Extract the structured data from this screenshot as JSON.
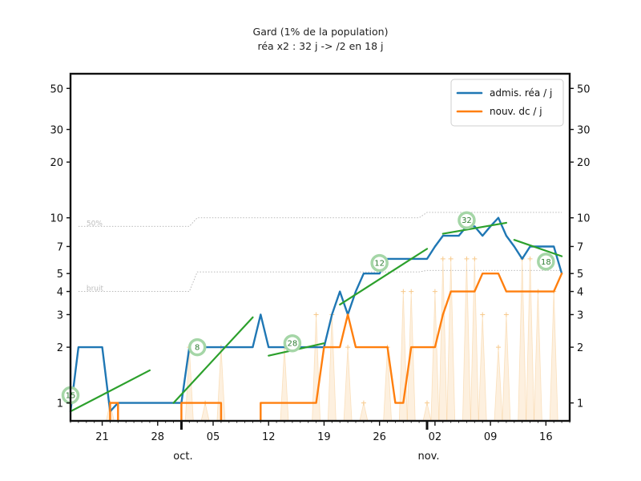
{
  "chart_data": {
    "type": "line",
    "title": "Gard (1% de la population)",
    "subtitle": "réa x2 : 32 j -> /2 en 18 j",
    "y_scale": "log",
    "ylim": [
      0.8,
      60
    ],
    "y_ticks": [
      1,
      2,
      3,
      4,
      5,
      7,
      10,
      20,
      30,
      50
    ],
    "x_range": [
      "2020-09-17",
      "2020-11-19"
    ],
    "x_tick_labels": [
      {
        "date": "2020-09-21",
        "label": "21"
      },
      {
        "date": "2020-09-28",
        "label": "28"
      },
      {
        "date": "2020-10-05",
        "label": "05"
      },
      {
        "date": "2020-10-12",
        "label": "12"
      },
      {
        "date": "2020-10-19",
        "label": "19"
      },
      {
        "date": "2020-10-26",
        "label": "26"
      },
      {
        "date": "2020-11-02",
        "label": "02"
      },
      {
        "date": "2020-11-09",
        "label": "09"
      },
      {
        "date": "2020-11-16",
        "label": "16"
      }
    ],
    "month_labels": [
      {
        "date": "2020-10-01",
        "label": "oct."
      },
      {
        "date": "2020-11-01",
        "label": "nov."
      }
    ],
    "reference_lines": [
      {
        "label": "50%",
        "points": [
          [
            "2020-09-18",
            9.0
          ],
          [
            "2020-10-02",
            9.0
          ],
          [
            "2020-10-03",
            10.0
          ],
          [
            "2020-10-31",
            10.0
          ],
          [
            "2020-11-01",
            10.7
          ],
          [
            "2020-11-18",
            10.7
          ]
        ]
      },
      {
        "label": "bruit",
        "points": [
          [
            "2020-09-18",
            4.0
          ],
          [
            "2020-10-02",
            4.0
          ],
          [
            "2020-10-03",
            5.1
          ],
          [
            "2020-10-31",
            5.1
          ],
          [
            "2020-11-01",
            5.2
          ],
          [
            "2020-11-18",
            5.2
          ]
        ]
      }
    ],
    "series": [
      {
        "name": "admis. réa / j",
        "color": "#1f77b4",
        "points": [
          [
            "2020-09-17",
            0.9
          ],
          [
            "2020-09-18",
            2.0
          ],
          [
            "2020-09-19",
            2.0
          ],
          [
            "2020-09-20",
            2.0
          ],
          [
            "2020-09-21",
            2.0
          ],
          [
            "2020-09-22",
            0.9
          ],
          [
            "2020-09-23",
            1.0
          ],
          [
            "2020-09-24",
            1.0
          ],
          [
            "2020-09-25",
            1.0
          ],
          [
            "2020-09-26",
            1.0
          ],
          [
            "2020-09-27",
            1.0
          ],
          [
            "2020-09-28",
            1.0
          ],
          [
            "2020-09-29",
            1.0
          ],
          [
            "2020-09-30",
            1.0
          ],
          [
            "2020-10-01",
            1.0
          ],
          [
            "2020-10-02",
            2.0
          ],
          [
            "2020-10-03",
            2.0
          ],
          [
            "2020-10-04",
            2.0
          ],
          [
            "2020-10-05",
            2.0
          ],
          [
            "2020-10-06",
            2.0
          ],
          [
            "2020-10-07",
            2.0
          ],
          [
            "2020-10-08",
            2.0
          ],
          [
            "2020-10-09",
            2.0
          ],
          [
            "2020-10-10",
            2.0
          ],
          [
            "2020-10-11",
            3.0
          ],
          [
            "2020-10-12",
            2.0
          ],
          [
            "2020-10-13",
            2.0
          ],
          [
            "2020-10-14",
            2.0
          ],
          [
            "2020-10-15",
            2.0
          ],
          [
            "2020-10-16",
            2.0
          ],
          [
            "2020-10-17",
            2.0
          ],
          [
            "2020-10-18",
            2.0
          ],
          [
            "2020-10-19",
            2.0
          ],
          [
            "2020-10-20",
            3.0
          ],
          [
            "2020-10-21",
            4.0
          ],
          [
            "2020-10-22",
            3.0
          ],
          [
            "2020-10-23",
            4.0
          ],
          [
            "2020-10-24",
            5.0
          ],
          [
            "2020-10-25",
            5.0
          ],
          [
            "2020-10-26",
            5.0
          ],
          [
            "2020-10-27",
            6.0
          ],
          [
            "2020-10-28",
            6.0
          ],
          [
            "2020-10-29",
            6.0
          ],
          [
            "2020-10-30",
            6.0
          ],
          [
            "2020-10-31",
            6.0
          ],
          [
            "2020-11-01",
            6.0
          ],
          [
            "2020-11-02",
            7.0
          ],
          [
            "2020-11-03",
            8.0
          ],
          [
            "2020-11-04",
            8.0
          ],
          [
            "2020-11-05",
            8.0
          ],
          [
            "2020-11-06",
            9.0
          ],
          [
            "2020-11-07",
            9.0
          ],
          [
            "2020-11-08",
            8.0
          ],
          [
            "2020-11-09",
            9.0
          ],
          [
            "2020-11-10",
            10.0
          ],
          [
            "2020-11-11",
            8.0
          ],
          [
            "2020-11-12",
            7.0
          ],
          [
            "2020-11-13",
            6.0
          ],
          [
            "2020-11-14",
            7.0
          ],
          [
            "2020-11-15",
            7.0
          ],
          [
            "2020-11-16",
            7.0
          ],
          [
            "2020-11-17",
            7.0
          ],
          [
            "2020-11-18",
            5.0
          ]
        ]
      },
      {
        "name": "nouv. dc / j",
        "color": "#ff7f0e",
        "points": [
          [
            "2020-09-22",
            0.8
          ],
          [
            "2020-09-22",
            1.0
          ],
          [
            "2020-09-23",
            1.0
          ],
          [
            "2020-09-23",
            0.8
          ],
          null,
          [
            "2020-10-01",
            0.8
          ],
          [
            "2020-10-01",
            1.0
          ],
          [
            "2020-10-02",
            1.0
          ],
          [
            "2020-10-03",
            1.0
          ],
          [
            "2020-10-04",
            1.0
          ],
          [
            "2020-10-05",
            1.0
          ],
          [
            "2020-10-06",
            1.0
          ],
          [
            "2020-10-06",
            0.8
          ],
          null,
          [
            "2020-10-11",
            0.8
          ],
          [
            "2020-10-11",
            1.0
          ],
          [
            "2020-10-12",
            1.0
          ],
          [
            "2020-10-13",
            1.0
          ],
          [
            "2020-10-14",
            1.0
          ],
          [
            "2020-10-15",
            1.0
          ],
          [
            "2020-10-16",
            1.0
          ],
          [
            "2020-10-17",
            1.0
          ],
          [
            "2020-10-18",
            1.0
          ],
          [
            "2020-10-19",
            2.0
          ],
          [
            "2020-10-20",
            2.0
          ],
          [
            "2020-10-21",
            2.0
          ],
          [
            "2020-10-22",
            3.0
          ],
          [
            "2020-10-23",
            2.0
          ],
          [
            "2020-10-24",
            2.0
          ],
          [
            "2020-10-25",
            2.0
          ],
          [
            "2020-10-26",
            2.0
          ],
          [
            "2020-10-27",
            2.0
          ],
          [
            "2020-10-28",
            1.0
          ],
          [
            "2020-10-29",
            1.0
          ],
          [
            "2020-10-30",
            2.0
          ],
          [
            "2020-10-31",
            2.0
          ],
          [
            "2020-11-01",
            2.0
          ],
          [
            "2020-11-02",
            2.0
          ],
          [
            "2020-11-03",
            3.0
          ],
          [
            "2020-11-04",
            4.0
          ],
          [
            "2020-11-05",
            4.0
          ],
          [
            "2020-11-06",
            4.0
          ],
          [
            "2020-11-07",
            4.0
          ],
          [
            "2020-11-08",
            5.0
          ],
          [
            "2020-11-09",
            5.0
          ],
          [
            "2020-11-10",
            5.0
          ],
          [
            "2020-11-11",
            4.0
          ],
          [
            "2020-11-12",
            4.0
          ],
          [
            "2020-11-13",
            4.0
          ],
          [
            "2020-11-14",
            4.0
          ],
          [
            "2020-11-15",
            4.0
          ],
          [
            "2020-11-16",
            4.0
          ],
          [
            "2020-11-17",
            4.0
          ],
          [
            "2020-11-18",
            5.0
          ]
        ]
      }
    ],
    "raw_daily_deaths": {
      "color": "#f7c98b",
      "points": [
        [
          "2020-09-22",
          1.0
        ],
        [
          "2020-10-02",
          2.0
        ],
        [
          "2020-10-04",
          1.0
        ],
        [
          "2020-10-06",
          2.0
        ],
        [
          "2020-10-14",
          2.0
        ],
        [
          "2020-10-18",
          3.0
        ],
        [
          "2020-10-20",
          3.0
        ],
        [
          "2020-10-22",
          2.0
        ],
        [
          "2020-10-24",
          1.0
        ],
        [
          "2020-10-27",
          2.0
        ],
        [
          "2020-10-29",
          4.0
        ],
        [
          "2020-10-30",
          4.0
        ],
        [
          "2020-11-01",
          1.0
        ],
        [
          "2020-11-02",
          4.0
        ],
        [
          "2020-11-03",
          6.0
        ],
        [
          "2020-11-04",
          6.0
        ],
        [
          "2020-11-06",
          6.0
        ],
        [
          "2020-11-07",
          6.0
        ],
        [
          "2020-11-08",
          3.0
        ],
        [
          "2020-11-10",
          2.0
        ],
        [
          "2020-11-11",
          3.0
        ],
        [
          "2020-11-13",
          6.0
        ],
        [
          "2020-11-14",
          6.0
        ],
        [
          "2020-11-15",
          4.0
        ],
        [
          "2020-11-17",
          4.0
        ]
      ]
    },
    "trend_segments": [
      {
        "color": "#2ca02c",
        "label": "15",
        "from": [
          "2020-09-17",
          0.9
        ],
        "to": [
          "2020-09-27",
          1.5
        ],
        "label_at": [
          "2020-09-17",
          1.1
        ]
      },
      {
        "color": "#2ca02c",
        "label": "8",
        "from": [
          "2020-09-30",
          1.0
        ],
        "to": [
          "2020-10-10",
          2.9
        ],
        "label_at": [
          "2020-10-03",
          2.0
        ]
      },
      {
        "color": "#2ca02c",
        "label": "28",
        "from": [
          "2020-10-12",
          1.8
        ],
        "to": [
          "2020-10-19",
          2.1
        ],
        "label_at": [
          "2020-10-15",
          2.1
        ]
      },
      {
        "color": "#2ca02c",
        "label": "12",
        "from": [
          "2020-10-21",
          3.4
        ],
        "to": [
          "2020-11-01",
          6.8
        ],
        "label_at": [
          "2020-10-26",
          5.7
        ]
      },
      {
        "color": "#2ca02c",
        "label": "32",
        "from": [
          "2020-11-03",
          8.2
        ],
        "to": [
          "2020-11-11",
          9.4
        ],
        "label_at": [
          "2020-11-06",
          9.7
        ]
      },
      {
        "color": "#2ca02c",
        "label": "18",
        "from": [
          "2020-11-12",
          7.6
        ],
        "to": [
          "2020-11-18",
          6.2
        ],
        "label_at": [
          "2020-11-16",
          5.8
        ]
      }
    ],
    "legend": {
      "position": "top-right",
      "entries": [
        {
          "label": "admis. réa / j",
          "color": "#1f77b4"
        },
        {
          "label": "nouv. dc / j",
          "color": "#ff7f0e"
        }
      ]
    },
    "grid": false
  }
}
